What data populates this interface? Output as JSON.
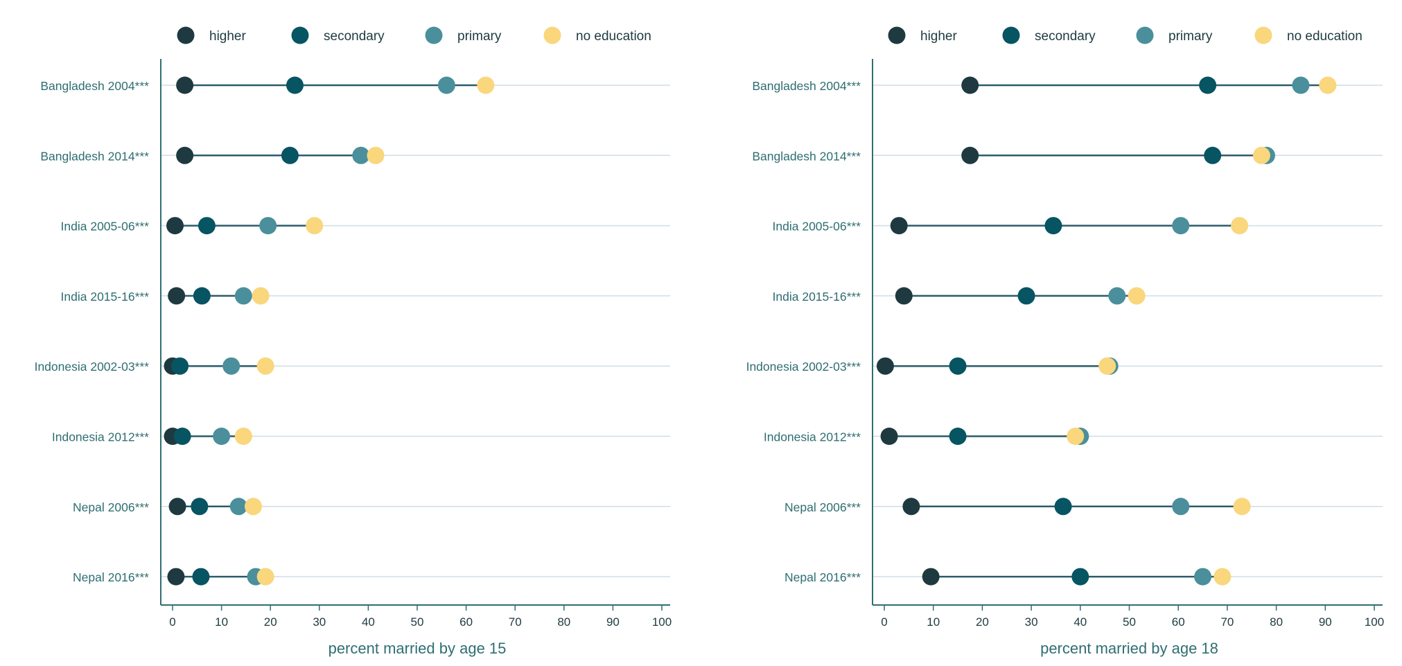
{
  "legend": {
    "items": [
      {
        "label": "higher",
        "color": "#1e3a40"
      },
      {
        "label": "secondary",
        "color": "#075462"
      },
      {
        "label": "primary",
        "color": "#4a8f9b"
      },
      {
        "label": "no education",
        "color": "#fad67c"
      }
    ]
  },
  "colors": {
    "axis": "#2f6e72",
    "text": "#2f6e72",
    "gridline": "#cfdde6",
    "range_line": "#2b5b6b"
  },
  "chart_data": [
    {
      "type": "scatter",
      "title": "",
      "xlabel": "percent married by age 15",
      "ylabel": "",
      "xlim": [
        0,
        100
      ],
      "xticks": [
        0,
        10,
        20,
        30,
        40,
        50,
        60,
        70,
        80,
        90,
        100
      ],
      "grid": "horizontal",
      "legend": "top",
      "categories": [
        "Bangladesh 2004***",
        "Bangladesh 2014***",
        "India 2005-06***",
        "India 2015-16***",
        "Indonesia 2002-03***",
        "Indonesia 2012***",
        "Nepal 2006***",
        "Nepal 2016***"
      ],
      "series": [
        {
          "name": "higher",
          "values": [
            2.5,
            2.5,
            0.5,
            0.8,
            0,
            0,
            1,
            0.7
          ]
        },
        {
          "name": "secondary",
          "values": [
            25,
            24,
            7,
            6,
            1.5,
            2,
            5.5,
            5.8
          ]
        },
        {
          "name": "primary",
          "values": [
            56,
            38.5,
            19.5,
            14.5,
            12,
            10,
            13.5,
            17
          ]
        },
        {
          "name": "no education",
          "values": [
            64,
            41.5,
            29,
            18,
            19,
            14.5,
            16.5,
            19
          ]
        }
      ]
    },
    {
      "type": "scatter",
      "title": "",
      "xlabel": "percent married by age 18",
      "ylabel": "",
      "xlim": [
        0,
        100
      ],
      "xticks": [
        0,
        10,
        20,
        30,
        40,
        50,
        60,
        70,
        80,
        90,
        100
      ],
      "grid": "horizontal",
      "legend": "top",
      "categories": [
        "Bangladesh 2004***",
        "Bangladesh 2014***",
        "India 2005-06***",
        "India 2015-16***",
        "Indonesia 2002-03***",
        "Indonesia 2012***",
        "Nepal 2006***",
        "Nepal 2016***"
      ],
      "series": [
        {
          "name": "higher",
          "values": [
            17.5,
            17.5,
            3,
            4,
            0.2,
            1,
            5.5,
            9.5
          ]
        },
        {
          "name": "secondary",
          "values": [
            66,
            67,
            34.5,
            29,
            15,
            15,
            36.5,
            40
          ]
        },
        {
          "name": "primary",
          "values": [
            85,
            78,
            60.5,
            47.5,
            46,
            40,
            60.5,
            65
          ]
        },
        {
          "name": "no education",
          "values": [
            90.5,
            77,
            72.5,
            51.5,
            45.5,
            39,
            73,
            69
          ]
        }
      ]
    }
  ]
}
